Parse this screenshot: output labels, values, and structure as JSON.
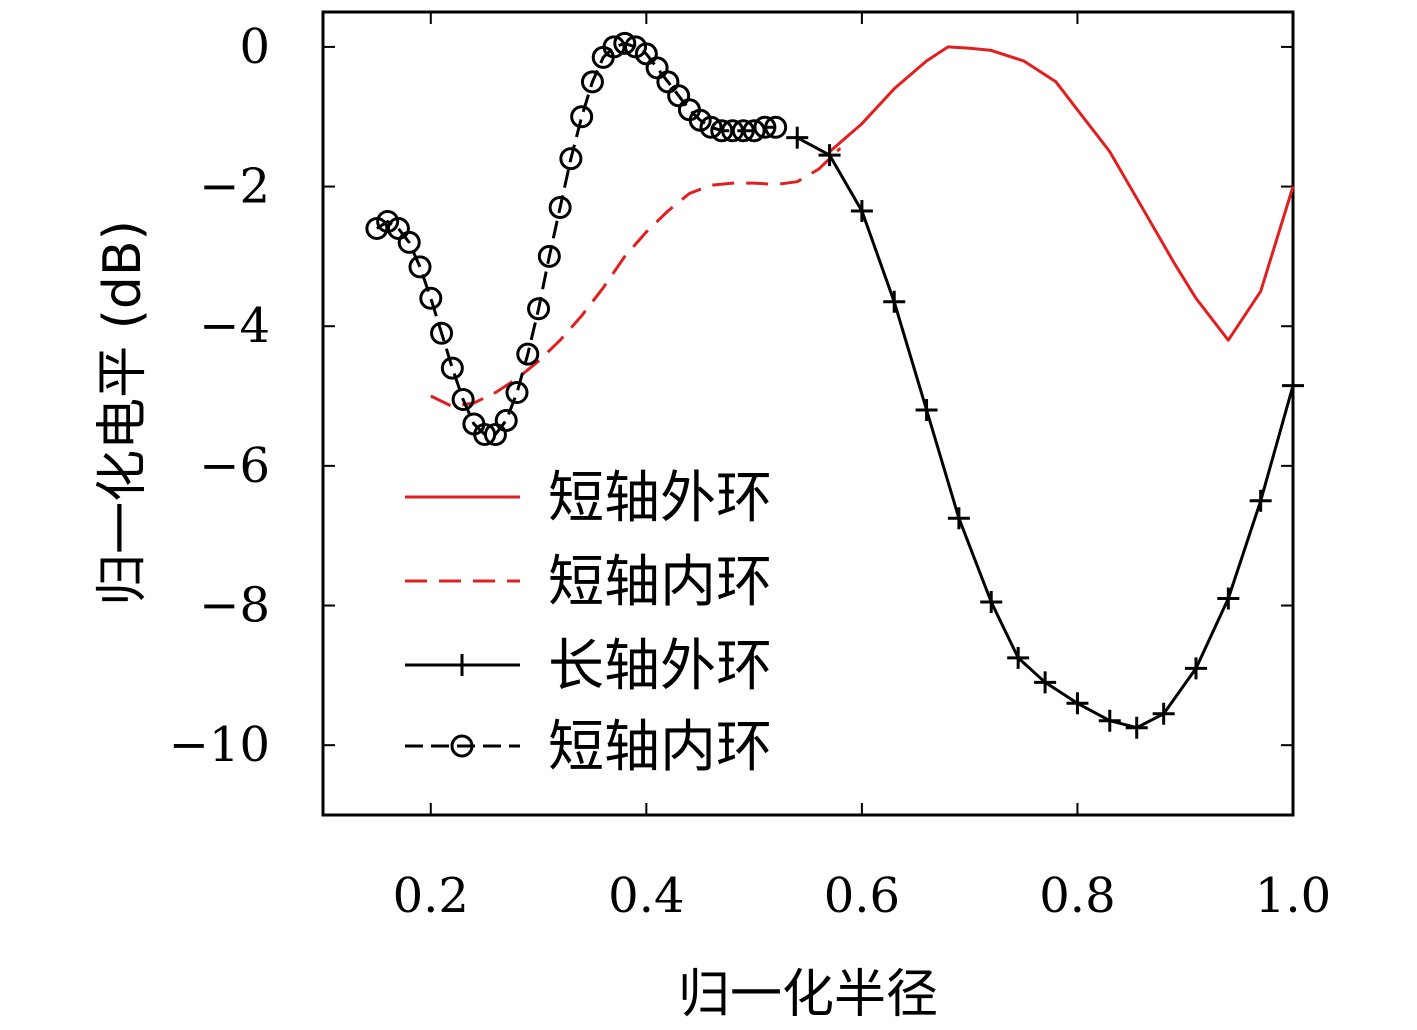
{
  "chart_data": {
    "type": "line",
    "xlabel": "归一化半径",
    "ylabel": "归一化电平 (dB)",
    "xlim": [
      0.1,
      1.0
    ],
    "ylim": [
      -11,
      0.5
    ],
    "xticks": [
      0.2,
      0.4,
      0.6,
      0.8,
      1.0
    ],
    "xtick_labels": [
      "0.2",
      "0.4",
      "0.6",
      "0.8",
      "1.0"
    ],
    "yticks": [
      0,
      -2,
      -4,
      -6,
      -8,
      -10
    ],
    "ytick_labels": [
      "0",
      "−2",
      "−4",
      "−6",
      "−8",
      "−10"
    ],
    "grid": false,
    "legend_position": "lower-left",
    "series": [
      {
        "name": "短轴外环",
        "color": "#e02020",
        "style": "solid",
        "marker": "none",
        "x": [
          0.57,
          0.6,
          0.63,
          0.66,
          0.68,
          0.7,
          0.72,
          0.75,
          0.78,
          0.8,
          0.83,
          0.86,
          0.89,
          0.91,
          0.94,
          0.97,
          1.0
        ],
        "y": [
          -1.5,
          -1.1,
          -0.6,
          -0.2,
          0.0,
          -0.02,
          -0.05,
          -0.2,
          -0.5,
          -0.9,
          -1.5,
          -2.3,
          -3.1,
          -3.6,
          -4.2,
          -3.5,
          -2.0
        ]
      },
      {
        "name": "短轴内环",
        "color": "#e02020",
        "style": "dashed",
        "marker": "none",
        "x": [
          0.2,
          0.22,
          0.24,
          0.26,
          0.28,
          0.3,
          0.32,
          0.34,
          0.36,
          0.38,
          0.4,
          0.42,
          0.44,
          0.46,
          0.48,
          0.5,
          0.52,
          0.54,
          0.56,
          0.58
        ],
        "y": [
          -5.0,
          -5.15,
          -5.1,
          -4.95,
          -4.75,
          -4.5,
          -4.2,
          -3.85,
          -3.45,
          -3.0,
          -2.65,
          -2.35,
          -2.1,
          -1.98,
          -1.95,
          -1.95,
          -1.97,
          -1.93,
          -1.75,
          -1.45
        ]
      },
      {
        "name": "长轴外环",
        "color": "#000000",
        "style": "solid",
        "marker": "plus",
        "x": [
          0.54,
          0.57,
          0.6,
          0.63,
          0.66,
          0.69,
          0.72,
          0.745,
          0.77,
          0.8,
          0.83,
          0.855,
          0.88,
          0.91,
          0.94,
          0.97,
          1.0
        ],
        "y": [
          -1.3,
          -1.55,
          -2.35,
          -3.65,
          -5.2,
          -6.75,
          -7.95,
          -8.75,
          -9.1,
          -9.4,
          -9.65,
          -9.75,
          -9.55,
          -8.9,
          -7.9,
          -6.5,
          -4.85
        ]
      },
      {
        "name": "短轴内环",
        "color": "#000000",
        "style": "dashed",
        "marker": "circle",
        "x": [
          0.15,
          0.16,
          0.17,
          0.18,
          0.19,
          0.2,
          0.21,
          0.22,
          0.23,
          0.24,
          0.25,
          0.26,
          0.27,
          0.28,
          0.29,
          0.3,
          0.31,
          0.32,
          0.33,
          0.34,
          0.35,
          0.36,
          0.37,
          0.38,
          0.39,
          0.4,
          0.41,
          0.42,
          0.43,
          0.44,
          0.45,
          0.46,
          0.47,
          0.48,
          0.49,
          0.5,
          0.51,
          0.52
        ],
        "y": [
          -2.6,
          -2.5,
          -2.6,
          -2.8,
          -3.15,
          -3.6,
          -4.1,
          -4.6,
          -5.05,
          -5.4,
          -5.55,
          -5.55,
          -5.35,
          -4.95,
          -4.4,
          -3.75,
          -3.0,
          -2.3,
          -1.6,
          -1.0,
          -0.5,
          -0.15,
          0.0,
          0.05,
          0.0,
          -0.1,
          -0.3,
          -0.5,
          -0.7,
          -0.9,
          -1.05,
          -1.15,
          -1.2,
          -1.2,
          -1.2,
          -1.2,
          -1.15,
          -1.15
        ]
      }
    ]
  }
}
